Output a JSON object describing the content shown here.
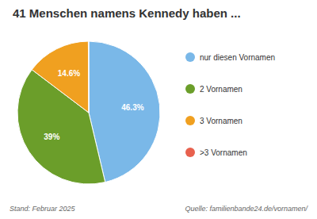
{
  "chart_data": {
    "type": "pie",
    "title": "41 Menschen namens Kennedy haben ...",
    "categories": [
      "nur diesen Vornamen",
      "2 Vornamen",
      "3 Vornamen",
      ">3 Vornamen"
    ],
    "values": [
      46.3,
      39.0,
      14.6,
      0.1
    ],
    "value_labels": [
      "46.3%",
      "39%",
      "14.6%",
      null
    ],
    "colors": [
      "#7ab8e8",
      "#6b9e2a",
      "#f0a020",
      "#e8614e"
    ],
    "data_labels": true,
    "legend": "right",
    "annotations": [
      "Stand: Februar 2025",
      "Quelle: familienbande24.de/vornamen/"
    ]
  }
}
